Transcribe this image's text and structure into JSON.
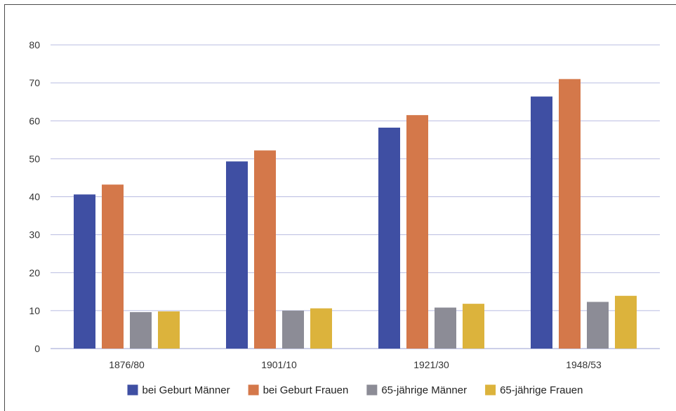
{
  "chart_data": {
    "type": "bar",
    "title": "",
    "xlabel": "",
    "ylabel": "",
    "categories": [
      "1876/80",
      "1901/10",
      "1921/30",
      "1948/53"
    ],
    "series": [
      {
        "name": "bei Geburt Männer",
        "color": "#3f4fa3",
        "values": [
          40.6,
          49.3,
          58.2,
          66.4
        ]
      },
      {
        "name": "bei Geburt Frauen",
        "color": "#d4784a",
        "values": [
          43.2,
          52.2,
          61.5,
          71.0
        ]
      },
      {
        "name": "65-jährige Männer",
        "color": "#8c8c96",
        "values": [
          9.6,
          10.0,
          10.8,
          12.3
        ]
      },
      {
        "name": "65-jährige Frauen",
        "color": "#dcb33c",
        "values": [
          9.8,
          10.6,
          11.8,
          13.9
        ]
      }
    ],
    "ylim": [
      0,
      80
    ],
    "yticks": [
      0,
      10,
      20,
      30,
      40,
      50,
      60,
      70,
      80
    ],
    "grid": true,
    "legend_position": "bottom"
  }
}
